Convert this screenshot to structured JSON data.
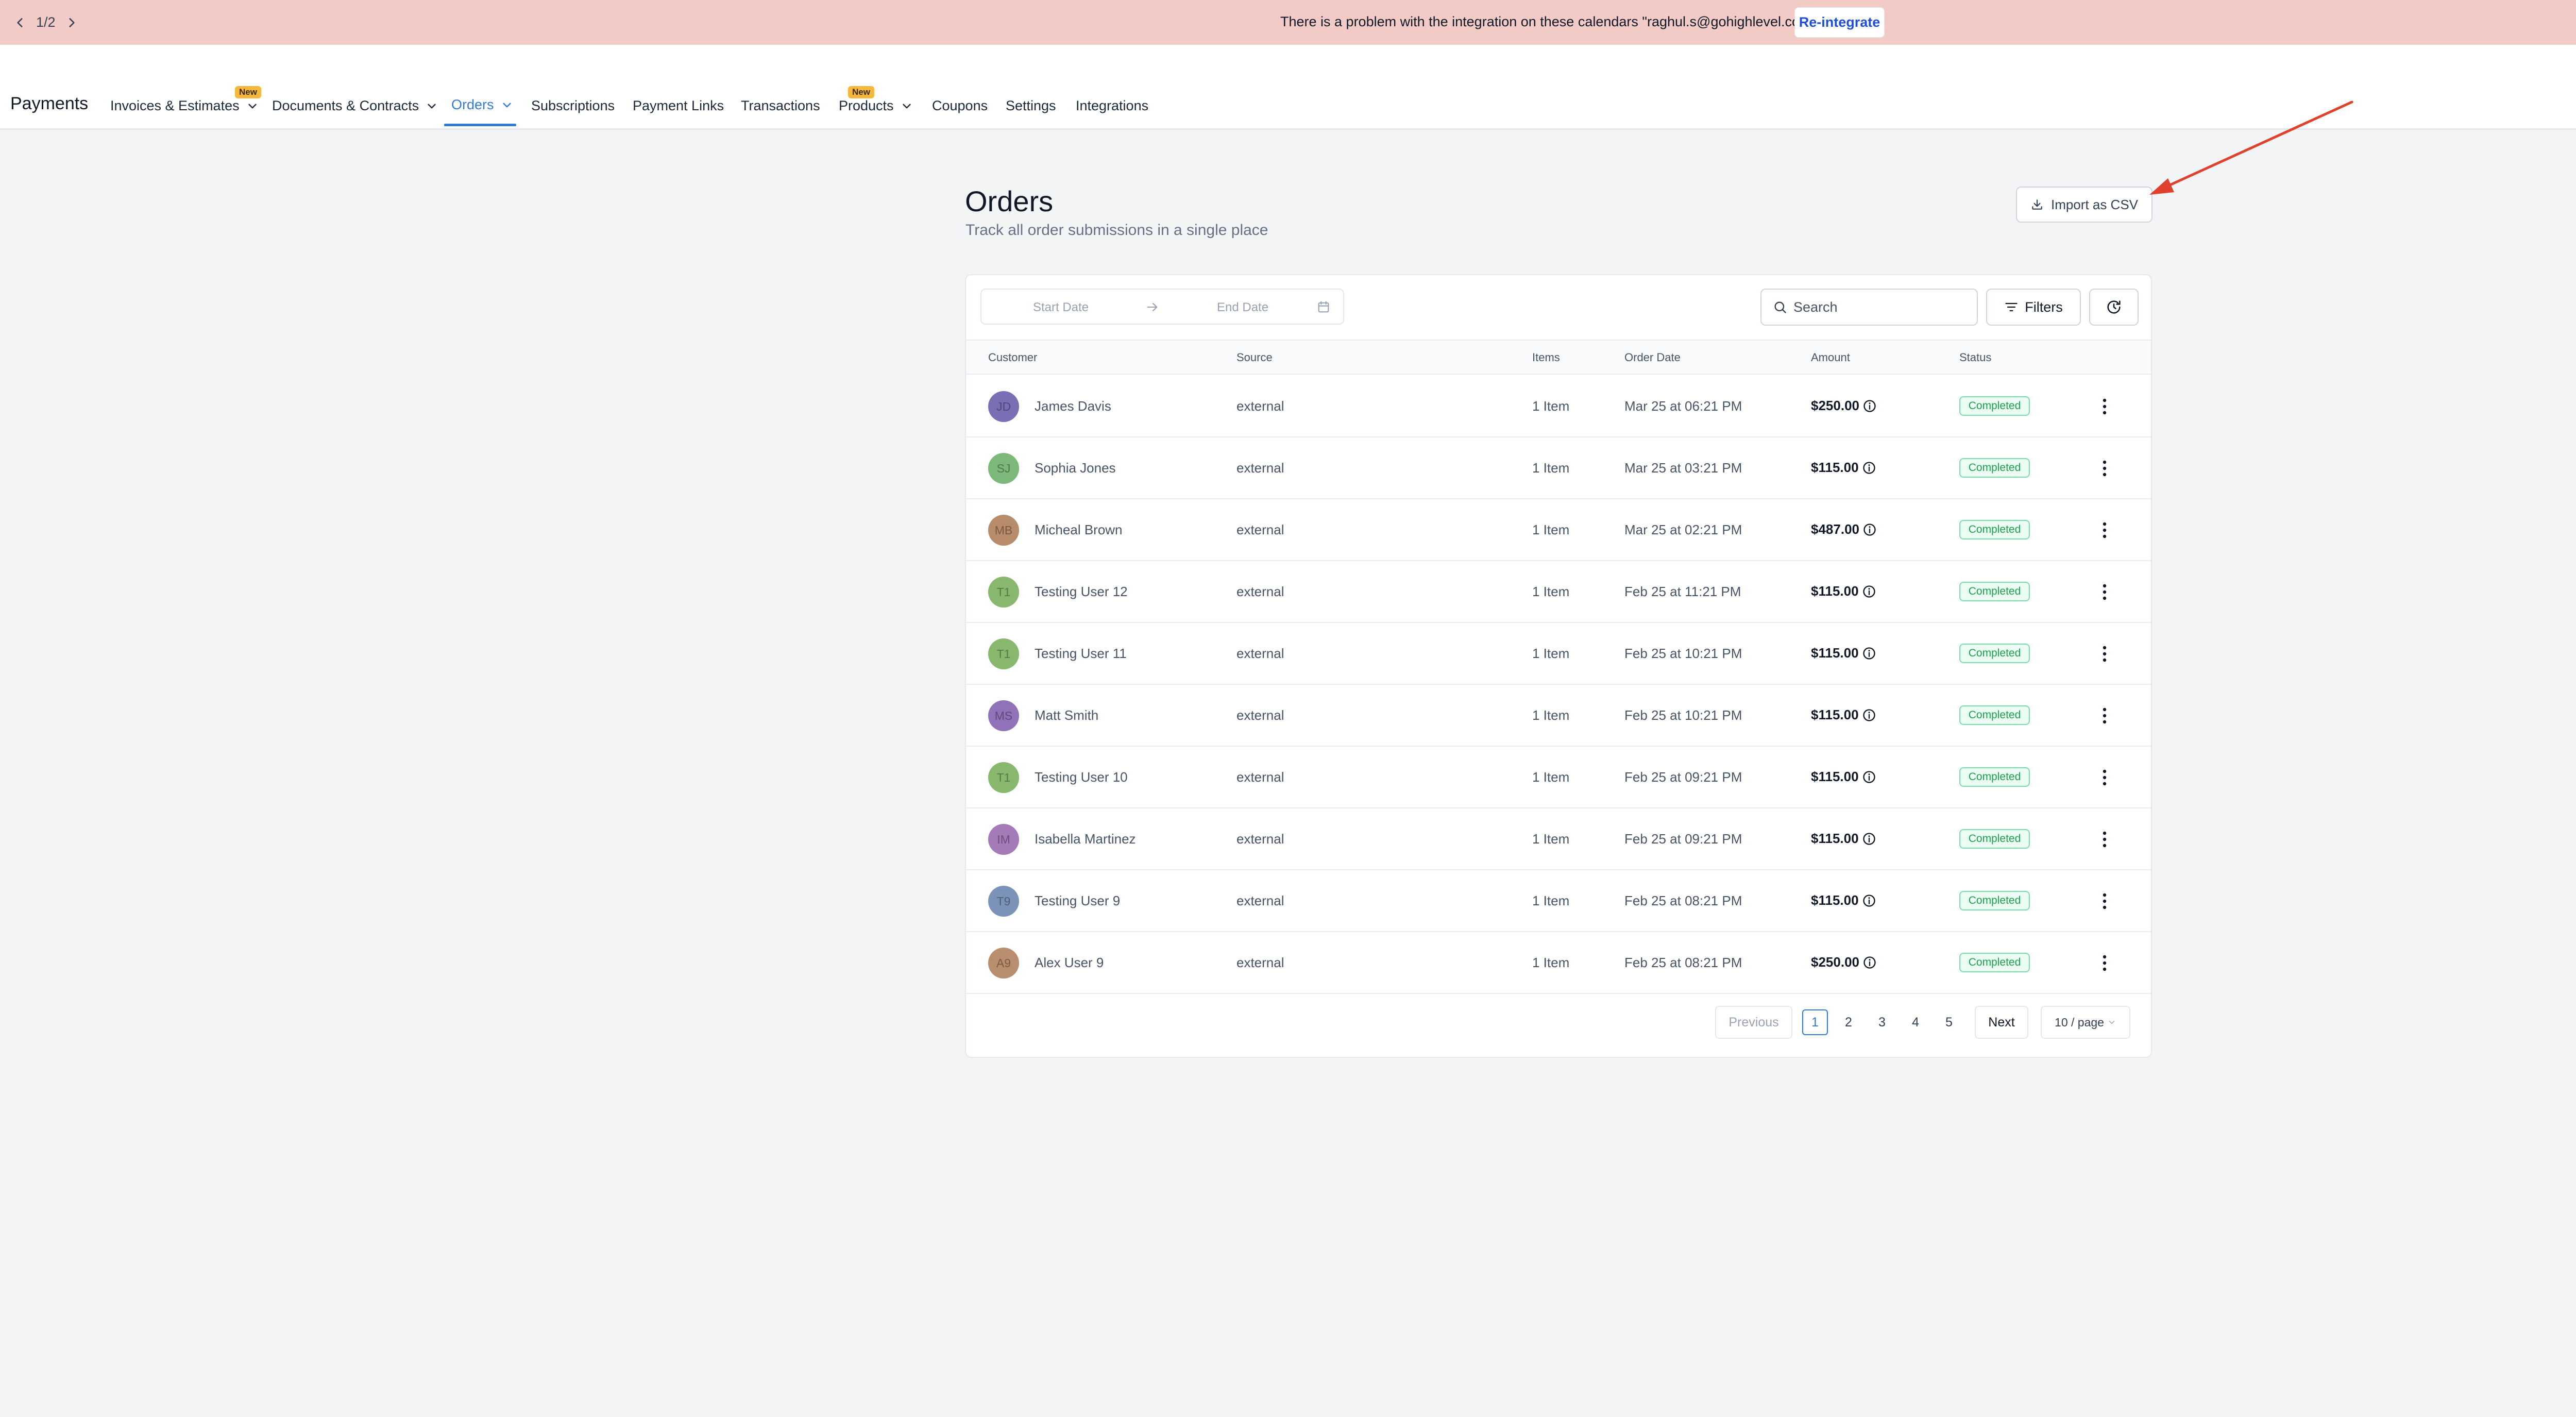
{
  "banner": {
    "pager": "1/2",
    "message": "There is a problem with the integration on these calendars \"raghul.s@gohighlevel.com\".",
    "action_label": "Re-integrate"
  },
  "nav": {
    "app_title": "Payments",
    "badge_label": "New",
    "items": [
      {
        "label": "Invoices & Estimates",
        "has_dropdown": true,
        "badge": true
      },
      {
        "label": "Documents & Contracts",
        "has_dropdown": true,
        "badge": false
      },
      {
        "label": "Orders",
        "has_dropdown": true,
        "active": true
      },
      {
        "label": "Subscriptions"
      },
      {
        "label": "Payment Links"
      },
      {
        "label": "Transactions"
      },
      {
        "label": "Products",
        "has_dropdown": true,
        "badge": true
      },
      {
        "label": "Coupons"
      },
      {
        "label": "Settings"
      },
      {
        "label": "Integrations"
      }
    ]
  },
  "page": {
    "title": "Orders",
    "subtitle": "Track all order submissions in a single place",
    "import_label": "Import as CSV"
  },
  "toolbar": {
    "start_placeholder": "Start Date",
    "end_placeholder": "End Date",
    "search_placeholder": "Search",
    "filters_label": "Filters"
  },
  "table": {
    "columns": [
      "Customer",
      "Source",
      "Items",
      "Order Date",
      "Amount",
      "Status"
    ],
    "rows": [
      {
        "initials": "JD",
        "avatar_color": "#7a6fb4",
        "customer": "James Davis",
        "source": "external",
        "items": "1 Item",
        "date": "Mar 25 at 06:21 PM",
        "amount": "$250.00",
        "status": "Completed"
      },
      {
        "initials": "SJ",
        "avatar_color": "#7cb87a",
        "customer": "Sophia Jones",
        "source": "external",
        "items": "1 Item",
        "date": "Mar 25 at 03:21 PM",
        "amount": "$115.00",
        "status": "Completed"
      },
      {
        "initials": "MB",
        "avatar_color": "#b88b6a",
        "customer": "Micheal Brown",
        "source": "external",
        "items": "1 Item",
        "date": "Mar 25 at 02:21 PM",
        "amount": "$487.00",
        "status": "Completed"
      },
      {
        "initials": "T1",
        "avatar_color": "#88b86e",
        "customer": "Testing User 12",
        "source": "external",
        "items": "1 Item",
        "date": "Feb 25 at 11:21 PM",
        "amount": "$115.00",
        "status": "Completed"
      },
      {
        "initials": "T1",
        "avatar_color": "#88b86e",
        "customer": "Testing User 11",
        "source": "external",
        "items": "1 Item",
        "date": "Feb 25 at 10:21 PM",
        "amount": "$115.00",
        "status": "Completed"
      },
      {
        "initials": "MS",
        "avatar_color": "#8f72b8",
        "customer": "Matt Smith",
        "source": "external",
        "items": "1 Item",
        "date": "Feb 25 at 10:21 PM",
        "amount": "$115.00",
        "status": "Completed"
      },
      {
        "initials": "T1",
        "avatar_color": "#88b86e",
        "customer": "Testing User 10",
        "source": "external",
        "items": "1 Item",
        "date": "Feb 25 at 09:21 PM",
        "amount": "$115.00",
        "status": "Completed"
      },
      {
        "initials": "IM",
        "avatar_color": "#a57ab8",
        "customer": "Isabella Martinez",
        "source": "external",
        "items": "1 Item",
        "date": "Feb 25 at 09:21 PM",
        "amount": "$115.00",
        "status": "Completed"
      },
      {
        "initials": "T9",
        "avatar_color": "#7b93b8",
        "customer": "Testing User 9",
        "source": "external",
        "items": "1 Item",
        "date": "Feb 25 at 08:21 PM",
        "amount": "$115.00",
        "status": "Completed"
      },
      {
        "initials": "A9",
        "avatar_color": "#b88e6f",
        "customer": "Alex User 9",
        "source": "external",
        "items": "1 Item",
        "date": "Feb 25 at 08:21 PM",
        "amount": "$250.00",
        "status": "Completed"
      }
    ]
  },
  "pagination": {
    "previous_label": "Previous",
    "next_label": "Next",
    "pages": [
      "1",
      "2",
      "3",
      "4",
      "5"
    ],
    "current_page": "1",
    "page_size": "10 / page"
  },
  "colors": {
    "banner_bg": "#f2cbc6",
    "accent": "#2f7bd8",
    "status_green": "#17a34a",
    "annotation_arrow": "#e0412c"
  }
}
